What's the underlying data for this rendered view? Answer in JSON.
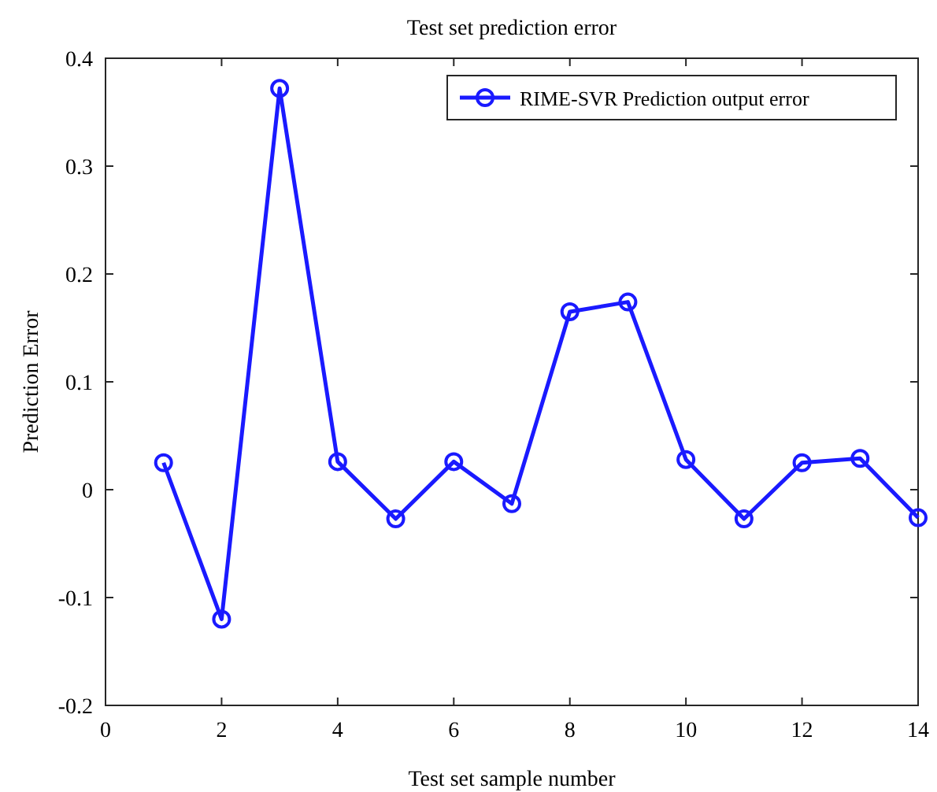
{
  "chart_data": {
    "type": "line",
    "title": "Test set prediction error",
    "xlabel": "Test set sample number",
    "ylabel": "Prediction Error",
    "x": [
      1,
      2,
      3,
      4,
      5,
      6,
      7,
      8,
      9,
      10,
      11,
      12,
      13,
      14
    ],
    "series": [
      {
        "name": "RIME-SVR Prediction output error",
        "color": "#1a1aff",
        "values": [
          0.025,
          -0.12,
          0.372,
          0.026,
          -0.027,
          0.026,
          -0.013,
          0.165,
          0.174,
          0.028,
          -0.027,
          0.025,
          0.029,
          -0.026
        ]
      }
    ],
    "xlim": [
      0,
      14
    ],
    "xticks": [
      0,
      2,
      4,
      6,
      8,
      10,
      12,
      14
    ],
    "ylim": [
      -0.2,
      0.4
    ],
    "yticks": [
      -0.2,
      -0.1,
      0,
      0.1,
      0.2,
      0.3,
      0.4
    ],
    "legend": "top right",
    "marker": "circle",
    "line_style": "solid",
    "grid": false
  }
}
